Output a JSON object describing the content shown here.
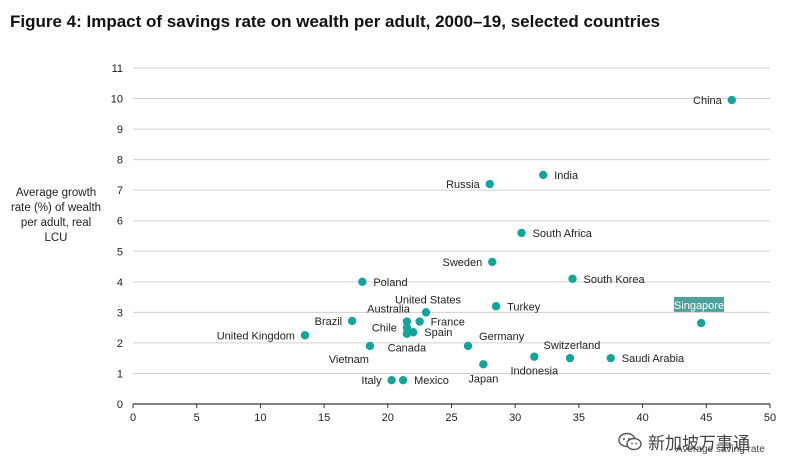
{
  "header": {
    "title": "Figure 4: Impact of savings rate on wealth per adult, 2000–19, selected countries"
  },
  "watermark": {
    "text": "新加坡万事通"
  },
  "colors": {
    "point": "#15a39a",
    "grid": "#d0d0d0",
    "axis": "#333333",
    "highlight": "#2f8f8a"
  },
  "chart_data": {
    "type": "scatter",
    "title": "Figure 4: Impact of savings rate on wealth per adult, 2000–19, selected countries",
    "xlabel": "Average saving rate",
    "ylabel": "Average growth rate (%) of wealth per adult, real LCU",
    "xlim": [
      0,
      50
    ],
    "ylim": [
      0,
      11
    ],
    "xticks": [
      0,
      5,
      10,
      15,
      20,
      25,
      30,
      35,
      40,
      45,
      50
    ],
    "yticks": [
      0,
      1,
      2,
      3,
      4,
      5,
      6,
      7,
      8,
      9,
      10,
      11
    ],
    "grid": "horizontal",
    "highlighted": "Singapore",
    "points": [
      {
        "label": "China",
        "x": 47.0,
        "y": 9.95,
        "labelSide": "left"
      },
      {
        "label": "India",
        "x": 32.2,
        "y": 7.5,
        "labelSide": "right"
      },
      {
        "label": "Russia",
        "x": 28.0,
        "y": 7.2,
        "labelSide": "left"
      },
      {
        "label": "South Africa",
        "x": 30.5,
        "y": 5.6,
        "labelSide": "right"
      },
      {
        "label": "Sweden",
        "x": 28.2,
        "y": 4.65,
        "labelSide": "left"
      },
      {
        "label": "South Korea",
        "x": 34.5,
        "y": 4.1,
        "labelSide": "right"
      },
      {
        "label": "Poland",
        "x": 18.0,
        "y": 4.0,
        "labelSide": "right"
      },
      {
        "label": "Turkey",
        "x": 28.5,
        "y": 3.2,
        "labelSide": "right"
      },
      {
        "label": "Singapore",
        "x": 44.6,
        "y": 2.65,
        "labelSide": "highlight"
      },
      {
        "label": "United States",
        "x": 23.0,
        "y": 3.0,
        "labelSide": "above"
      },
      {
        "label": "Australia",
        "x": 21.5,
        "y": 2.7,
        "labelSide": "aboveleft"
      },
      {
        "label": "Brazil",
        "x": 17.2,
        "y": 2.72,
        "labelSide": "left"
      },
      {
        "label": "France",
        "x": 22.5,
        "y": 2.7,
        "labelSide": "right"
      },
      {
        "label": "Chile",
        "x": 21.5,
        "y": 2.5,
        "labelSide": "left"
      },
      {
        "label": "Spain",
        "x": 22.0,
        "y": 2.35,
        "labelSide": "right"
      },
      {
        "label": "United Kingdom",
        "x": 13.5,
        "y": 2.25,
        "labelSide": "left"
      },
      {
        "label": "Canada",
        "x": 21.5,
        "y": 2.3,
        "labelSide": "below"
      },
      {
        "label": "Germany",
        "x": 26.3,
        "y": 1.9,
        "labelSide": "aboveright"
      },
      {
        "label": "Vietnam",
        "x": 18.6,
        "y": 1.9,
        "labelSide": "belowleft"
      },
      {
        "label": "Switzerland",
        "x": 34.3,
        "y": 1.5,
        "labelSide": "above"
      },
      {
        "label": "Saudi Arabia",
        "x": 37.5,
        "y": 1.5,
        "labelSide": "right"
      },
      {
        "label": "Indonesia",
        "x": 31.5,
        "y": 1.55,
        "labelSide": "below"
      },
      {
        "label": "Japan",
        "x": 27.5,
        "y": 1.3,
        "labelSide": "below"
      },
      {
        "label": "Italy",
        "x": 20.3,
        "y": 0.78,
        "labelSide": "left"
      },
      {
        "label": "Mexico",
        "x": 21.2,
        "y": 0.78,
        "labelSide": "right"
      }
    ]
  }
}
